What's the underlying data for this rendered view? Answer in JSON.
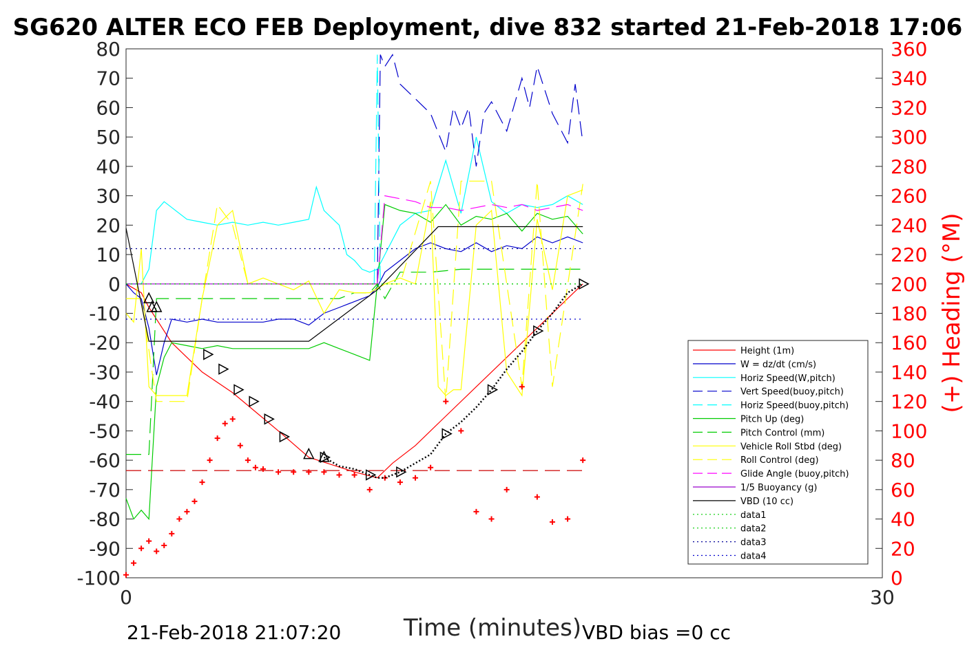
{
  "chart_data": {
    "type": "line",
    "title": "SG620 ALTER ECO FEB Deployment, dive 832 started 21-Feb-2018 17:06",
    "xlabel": "Time (minutes)",
    "ylabel_right": "(+) Heading (°M)",
    "xlim": [
      0,
      30
    ],
    "ylim_left": [
      -100,
      80
    ],
    "ylim_right": [
      0,
      360
    ],
    "x_ticks": [
      "0",
      "30"
    ],
    "y_ticks_left": [
      "80",
      "70",
      "60",
      "50",
      "40",
      "30",
      "20",
      "10",
      "0",
      "-10",
      "-20",
      "-30",
      "-40",
      "-50",
      "-60",
      "-70",
      "-80",
      "-90",
      "-100"
    ],
    "y_ticks_right": [
      "360",
      "340",
      "320",
      "300",
      "280",
      "260",
      "240",
      "220",
      "200",
      "180",
      "160",
      "140",
      "120",
      "100",
      "80",
      "60",
      "40",
      "20",
      "0"
    ],
    "footer_left": "21-Feb-2018 21:07:20",
    "footer_right": "VBD bias =0 cc",
    "legend": [
      {
        "label": "Height (1m)",
        "color": "#ff0000",
        "dash": "solid"
      },
      {
        "label": "W = dz/dt (cm/s)",
        "color": "#0000cc",
        "dash": "solid"
      },
      {
        "label": "Horiz Speed(W,pitch)",
        "color": "#00ffff",
        "dash": "solid"
      },
      {
        "label": "Vert Speed(buoy,pitch)",
        "color": "#0000cc",
        "dash": "dashed"
      },
      {
        "label": "Horiz Speed(buoy,pitch)",
        "color": "#00ffff",
        "dash": "dashed"
      },
      {
        "label": "Pitch Up (deg)",
        "color": "#00cc00",
        "dash": "solid"
      },
      {
        "label": "Pitch Control (mm)",
        "color": "#00cc00",
        "dash": "dashed"
      },
      {
        "label": "Vehicle Roll Stbd (deg)",
        "color": "#ffff00",
        "dash": "solid"
      },
      {
        "label": "Roll Control (deg)",
        "color": "#ffff00",
        "dash": "dashed"
      },
      {
        "label": "Glide Angle (buoy,pitch)",
        "color": "#ff00ff",
        "dash": "dashed"
      },
      {
        "label": "1/5 Buoyancy (g)",
        "color": "#9900cc",
        "dash": "solid"
      },
      {
        "label": "VBD (10 cc)",
        "color": "#000000",
        "dash": "solid"
      },
      {
        "label": "data1",
        "color": "#00cc00",
        "dash": "dotted"
      },
      {
        "label": "data2",
        "color": "#00cc00",
        "dash": "dotted"
      },
      {
        "label": "data3",
        "color": "#000099",
        "dash": "dotted"
      },
      {
        "label": "data4",
        "color": "#0000cc",
        "dash": "dotted"
      }
    ],
    "series": [
      {
        "name": "Height (1m)",
        "color": "#ff0000",
        "dash": "solid",
        "axis": "left",
        "x": [
          0,
          1,
          1.5,
          3,
          4,
          5,
          7,
          10,
          12,
          15,
          16.5,
          17.5,
          19,
          21,
          23,
          25,
          27,
          29,
          30
        ],
        "y": [
          0,
          -3,
          -8,
          -20,
          -25,
          -30,
          -37,
          -50,
          -59,
          -64,
          -66,
          -61,
          -55,
          -45,
          -35,
          -25,
          -15,
          -5,
          0
        ]
      },
      {
        "name": "W = dz/dt (cm/s)",
        "color": "#0000cc",
        "dash": "solid",
        "axis": "left",
        "x": [
          0,
          0.5,
          1,
          1.5,
          2,
          2.5,
          3,
          4,
          5,
          6,
          7,
          8,
          9,
          10,
          11,
          12,
          13,
          14,
          15,
          16,
          16.5,
          17,
          18,
          19,
          20,
          21,
          22,
          23,
          24,
          25,
          26,
          27,
          28,
          29,
          30
        ],
        "y": [
          0,
          -3,
          -5,
          -15,
          -31,
          -20,
          -12,
          -13,
          -12,
          -13,
          -13,
          -13,
          -13,
          -12,
          -12,
          -14,
          -10,
          -8,
          -6,
          -4,
          -1,
          4,
          8,
          12,
          14,
          12,
          11,
          14,
          11,
          13,
          12,
          16,
          14,
          16,
          14
        ]
      },
      {
        "name": "Horiz Speed(W,pitch)",
        "color": "#00ffff",
        "dash": "solid",
        "axis": "left",
        "x": [
          0,
          1,
          1.5,
          2,
          2.5,
          3,
          4,
          5,
          6,
          7,
          8,
          9,
          10,
          11,
          12,
          12.5,
          13,
          14,
          14.5,
          15,
          15.5,
          16,
          16.5,
          17,
          18,
          19,
          20,
          21,
          22,
          23,
          24,
          25,
          26,
          27,
          28,
          29,
          30
        ],
        "y": [
          0,
          0,
          5,
          25,
          28,
          26,
          22,
          21,
          20,
          21,
          20,
          21,
          20,
          21,
          22,
          33,
          25,
          20,
          10,
          8,
          5,
          4,
          5,
          10,
          20,
          24,
          25,
          42,
          24,
          50,
          28,
          24,
          27,
          26,
          27,
          30,
          27
        ]
      },
      {
        "name": "Vert Speed(buoy,pitch)",
        "color": "#0000cc",
        "dash": "dashed",
        "axis": "left",
        "x": [
          16.5,
          16.7,
          17,
          17.5,
          18,
          19,
          20,
          21,
          21.5,
          22,
          22.5,
          23,
          23.5,
          24,
          25,
          26,
          26.5,
          27,
          28,
          29,
          29.5,
          30
        ],
        "y": [
          0,
          78,
          74,
          78,
          68,
          63,
          58,
          45,
          60,
          53,
          60,
          40,
          58,
          62,
          52,
          70,
          60,
          74,
          58,
          48,
          68,
          48
        ]
      },
      {
        "name": "Horiz Speed(buoy,pitch)",
        "color": "#00ffff",
        "dash": "dashed",
        "axis": "left",
        "x": [
          16.3,
          16.5,
          16.7
        ],
        "y": [
          0,
          78,
          0
        ]
      },
      {
        "name": "Pitch Up (deg)",
        "color": "#00cc00",
        "dash": "solid",
        "axis": "left",
        "x": [
          0,
          0.5,
          1,
          1.5,
          2,
          2.5,
          3,
          4,
          5,
          6,
          7,
          8,
          9,
          10,
          11,
          12,
          13,
          14,
          15,
          16,
          16.5,
          17,
          18,
          19,
          20,
          21,
          22,
          23,
          24,
          25,
          26,
          27,
          28,
          29,
          30
        ],
        "y": [
          -73,
          -80,
          -77,
          -80,
          -35,
          -25,
          -20,
          -21,
          -22,
          -21,
          -22,
          -22,
          -22,
          -22,
          -22,
          -22,
          -20,
          -22,
          -24,
          -26,
          0,
          27,
          25,
          24,
          21,
          27,
          20,
          23,
          22,
          24,
          18,
          24,
          22,
          23,
          17
        ]
      },
      {
        "name": "Pitch Control (mm)",
        "color": "#00cc00",
        "dash": "dashed",
        "axis": "left",
        "x": [
          0,
          1,
          1.5,
          2,
          3,
          14,
          15,
          16,
          16.5,
          17,
          18,
          20,
          22,
          24,
          26,
          28,
          30
        ],
        "y": [
          -58,
          -58,
          -58,
          -5,
          -5,
          -5,
          -3,
          -3,
          0,
          -5,
          4,
          4,
          5,
          5,
          5,
          5,
          5
        ]
      },
      {
        "name": "Vehicle Roll Stbd (deg)",
        "color": "#ffff00",
        "dash": "solid",
        "axis": "left",
        "x": [
          0,
          0.5,
          1,
          1.5,
          2,
          3,
          4,
          5,
          6,
          7,
          8,
          9,
          10,
          11,
          12,
          13,
          14,
          15,
          16,
          17,
          18,
          19,
          20,
          20.5,
          21,
          21.5,
          22,
          23,
          24,
          25,
          26,
          27,
          28,
          29,
          30
        ],
        "y": [
          -10,
          -13,
          12,
          -35,
          -38,
          -38,
          -38,
          -5,
          20,
          25,
          0,
          2,
          0,
          -2,
          1,
          -10,
          -2,
          -3,
          -3,
          0,
          2,
          0,
          28,
          -35,
          -38,
          -36,
          -36,
          20,
          25,
          -30,
          -38,
          22,
          -2,
          30,
          32
        ]
      },
      {
        "name": "Roll Control (deg)",
        "color": "#ffff00",
        "dash": "dashed",
        "axis": "left",
        "x": [
          0,
          1,
          2,
          3,
          4,
          5,
          6,
          7,
          8,
          10,
          12,
          14,
          16,
          18,
          20,
          21,
          22,
          24,
          26,
          27,
          28,
          30
        ],
        "y": [
          -5,
          -5,
          -40,
          -40,
          -40,
          -5,
          27,
          20,
          0,
          0,
          0,
          0,
          0,
          0,
          35,
          -40,
          35,
          35,
          -35,
          35,
          -35,
          34
        ]
      },
      {
        "name": "Glide Angle (buoy,pitch)",
        "color": "#ff00ff",
        "dash": "dashed",
        "axis": "left",
        "x": [
          16.5,
          17,
          18,
          19,
          20,
          21,
          22,
          23,
          24,
          25,
          26,
          27,
          28,
          29,
          30
        ],
        "y": [
          0,
          30,
          29,
          28,
          26,
          26,
          25,
          26,
          27,
          26,
          27,
          25,
          26,
          27,
          25
        ]
      },
      {
        "name": "1/5 Buoyancy (g)",
        "color": "#9900cc",
        "dash": "solid",
        "axis": "left",
        "x": [
          0,
          16.5
        ],
        "y": [
          0,
          0
        ]
      },
      {
        "name": "VBD (10 cc)",
        "color": "#000000",
        "dash": "solid",
        "axis": "left",
        "x": [
          0,
          1.5,
          12,
          16.5,
          20.5,
          30
        ],
        "y": [
          19,
          -19.5,
          -19.5,
          -2,
          19.5,
          19.5
        ]
      },
      {
        "name": "data1",
        "color": "#00cc00",
        "dash": "dotted",
        "axis": "left",
        "x": [
          0,
          30
        ],
        "y": [
          0,
          0
        ]
      },
      {
        "name": "data2",
        "color": "#00cc00",
        "dash": "dotted",
        "axis": "left",
        "x": [
          0,
          30
        ],
        "y": [
          0,
          0
        ]
      },
      {
        "name": "data3",
        "color": "#000099",
        "dash": "dotted",
        "axis": "left",
        "x": [
          0,
          30
        ],
        "y": [
          12,
          12
        ]
      },
      {
        "name": "data4",
        "color": "#0000cc",
        "dash": "dotted",
        "axis": "left",
        "x": [
          0,
          30
        ],
        "y": [
          -12,
          -12
        ]
      },
      {
        "name": "Heading",
        "color": "#ff0000",
        "dash": "markers",
        "axis": "right",
        "x": [
          0,
          0.5,
          1,
          1.5,
          2,
          2.5,
          3,
          3.5,
          4,
          4.5,
          5,
          5.5,
          6,
          6.5,
          7,
          7.5,
          8,
          8.5,
          9,
          10,
          11,
          12,
          13,
          14,
          15,
          16,
          17,
          18,
          19,
          20,
          21,
          22,
          23,
          24,
          25,
          26,
          27,
          28,
          29,
          30
        ],
        "y": [
          2,
          10,
          20,
          25,
          18,
          22,
          30,
          40,
          45,
          52,
          65,
          80,
          95,
          105,
          108,
          90,
          80,
          75,
          74,
          72,
          72,
          72,
          72,
          70,
          70,
          60,
          68,
          65,
          68,
          75,
          120,
          100,
          45,
          40,
          60,
          130,
          55,
          38,
          40,
          80
        ]
      },
      {
        "name": "Red dashed reference",
        "color": "#cc0000",
        "dash": "dashed",
        "axis": "left",
        "x": [
          0,
          30
        ],
        "y": [
          -63.5,
          -63.5
        ]
      }
    ],
    "triangles": {
      "down_left_x": [
        1.5,
        1.7,
        2,
        12,
        13
      ],
      "down_left_y": [
        -5,
        -8,
        -8,
        -58,
        -59
      ],
      "right_x": [
        5,
        6,
        7,
        8,
        9,
        10
      ],
      "right_y": [
        -24,
        -29,
        -36,
        -40,
        -46,
        -52
      ],
      "black_path_x": [
        13,
        14,
        15,
        16,
        16.5,
        17,
        18,
        19,
        20,
        21,
        22,
        23,
        24,
        25,
        26,
        27,
        28,
        29,
        30
      ],
      "black_path_y": [
        -59,
        -62,
        -63,
        -65,
        -66,
        -66,
        -64,
        -61,
        -58,
        -51,
        -47,
        -42,
        -36,
        -29,
        -23,
        -16,
        -10,
        -3,
        0
      ]
    }
  }
}
